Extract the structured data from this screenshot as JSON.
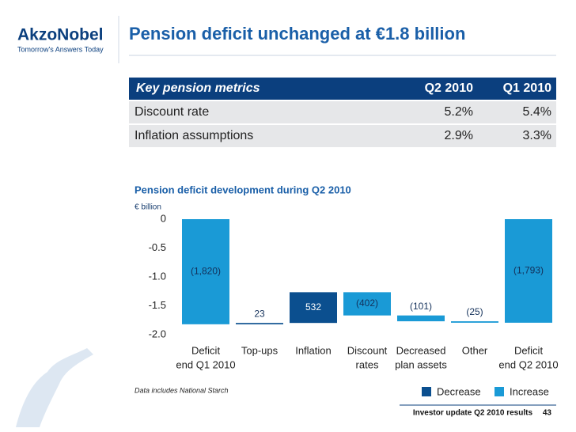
{
  "header": {
    "logo": "AkzoNobel",
    "tagline": "Tomorrow's Answers Today",
    "title": "Pension deficit unchanged at €1.8 billion"
  },
  "table": {
    "header": [
      "Key pension metrics",
      "Q2 2010",
      "Q1 2010"
    ],
    "rows": [
      [
        "Discount rate",
        "5.2%",
        "5.4%"
      ],
      [
        "Inflation assumptions",
        "2.9%",
        "3.3%"
      ]
    ]
  },
  "chart_data": {
    "type": "waterfall",
    "title": "Pension deficit development during Q2 2010",
    "y_label": "€ billion",
    "categories": [
      [
        "Deficit",
        "end Q1 2010"
      ],
      [
        "Top-ups"
      ],
      [
        "Inflation"
      ],
      [
        "Discount",
        "rates"
      ],
      [
        "Decreased",
        "plan assets"
      ],
      [
        "Other"
      ],
      [
        "Deficit",
        "end Q2 2010"
      ]
    ],
    "values": [
      -1.82,
      0.023,
      0.532,
      -0.402,
      -0.101,
      -0.025,
      -1.793
    ],
    "value_labels": [
      "(1,820)",
      "23",
      "532",
      "(402)",
      "(101)",
      "(25)",
      "(1,793)"
    ],
    "measure": [
      "total",
      "relative",
      "relative",
      "relative",
      "relative",
      "relative",
      "total"
    ],
    "colors": [
      "#1a9ad6",
      "#0b4f8f",
      "#0b4f8f",
      "#1a9ad6",
      "#1a9ad6",
      "#1a9ad6",
      "#1a9ad6"
    ],
    "ylim": [
      -2,
      0
    ],
    "yticks": [
      0,
      -0.5,
      {
        "value": -1,
        "label": "-1.0"
      },
      -1.5,
      {
        "value": -2,
        "label": "-2.0"
      }
    ],
    "legend": [
      {
        "name": "Decrease",
        "color": "#0b4f8f"
      },
      {
        "name": "Increase",
        "color": "#1a9ad6"
      }
    ],
    "note": "Data includes National Starch"
  },
  "footer": {
    "text": "Investor update Q2 2010 results",
    "page": "43"
  }
}
